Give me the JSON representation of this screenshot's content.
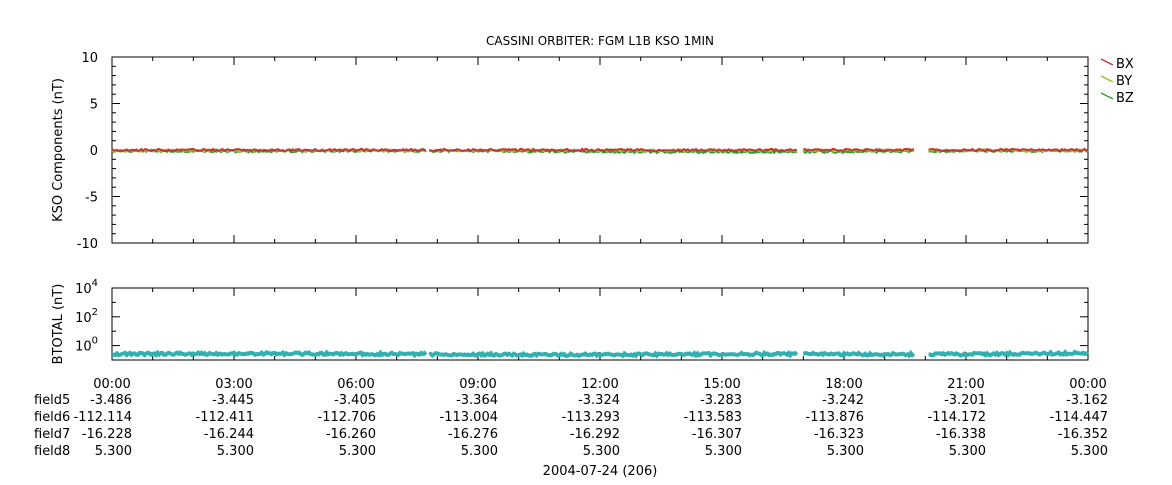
{
  "title": "CASSINI ORBITER: FGM L1B KSO 1MIN",
  "date_label": "2004-07-24 (206)",
  "chart_data": [
    {
      "type": "line",
      "ylabel": "KSO Components (nT)",
      "ylim": [
        -10,
        10
      ],
      "yticks": [
        "10",
        "5",
        "0",
        "-5",
        "-10"
      ],
      "ytick_values": [
        10,
        5,
        0,
        -5,
        -10
      ],
      "xlim_hours": [
        0,
        24
      ],
      "legend_placement": "right",
      "gaps_hours": [
        [
          7.75,
          7.8
        ],
        [
          16.85,
          17.0
        ],
        [
          19.75,
          20.05
        ]
      ],
      "series": [
        {
          "name": "BX",
          "color": "#cc3333",
          "x_hours": [
            0,
            3,
            6,
            9,
            12,
            15,
            18,
            21,
            24
          ],
          "values": [
            0.0,
            0.0,
            0.0,
            0.0,
            0.0,
            0.0,
            0.0,
            0.0,
            0.0
          ]
        },
        {
          "name": "BY",
          "color": "#a0c020",
          "x_hours": [
            0,
            3,
            6,
            9,
            12,
            15,
            18,
            21,
            24
          ],
          "values": [
            -0.05,
            -0.05,
            -0.05,
            -0.05,
            -0.05,
            -0.05,
            -0.05,
            -0.05,
            -0.05
          ]
        },
        {
          "name": "BZ",
          "color": "#30a030",
          "x_hours": [
            0,
            3,
            6,
            9,
            12,
            15,
            18,
            21,
            24
          ],
          "values": [
            -0.1,
            -0.15,
            -0.1,
            -0.1,
            -0.2,
            -0.2,
            -0.2,
            -0.1,
            -0.1
          ]
        }
      ]
    },
    {
      "type": "line",
      "ylabel": "BTOTAL (nT)",
      "yscale": "log",
      "ylim": [
        0.1,
        10000
      ],
      "yticks": [
        {
          "base": "10",
          "exp": "4",
          "value": 10000
        },
        {
          "base": "10",
          "exp": "2",
          "value": 100
        },
        {
          "base": "10",
          "exp": "0",
          "value": 1
        }
      ],
      "xlim_hours": [
        0,
        24
      ],
      "gaps_hours": [
        [
          7.75,
          7.8
        ],
        [
          16.85,
          17.0
        ],
        [
          19.75,
          20.05
        ]
      ],
      "series": [
        {
          "color": "#30b0b0",
          "x_hours": [
            0,
            3,
            6,
            9,
            12,
            15,
            18,
            21,
            24
          ],
          "values": [
            0.26,
            0.28,
            0.27,
            0.24,
            0.23,
            0.26,
            0.25,
            0.25,
            0.3
          ]
        }
      ]
    }
  ],
  "x_axis": {
    "tick_hours": [
      0,
      3,
      6,
      9,
      12,
      15,
      18,
      21,
      24
    ],
    "tick_labels": [
      "00:00",
      "03:00",
      "06:00",
      "09:00",
      "12:00",
      "15:00",
      "18:00",
      "21:00",
      "00:00"
    ]
  },
  "ephemeris_rows": [
    {
      "label": "field5",
      "values": [
        "-3.486",
        "-3.445",
        "-3.405",
        "-3.364",
        "-3.324",
        "-3.283",
        "-3.242",
        "-3.201",
        "-3.162"
      ]
    },
    {
      "label": "field6",
      "values": [
        "-112.114",
        "-112.411",
        "-112.706",
        "-113.004",
        "-113.293",
        "-113.583",
        "-113.876",
        "-114.172",
        "-114.447"
      ]
    },
    {
      "label": "field7",
      "values": [
        "-16.228",
        "-16.244",
        "-16.260",
        "-16.276",
        "-16.292",
        "-16.307",
        "-16.323",
        "-16.338",
        "-16.352"
      ]
    },
    {
      "label": "field8",
      "values": [
        "5.300",
        "5.300",
        "5.300",
        "5.300",
        "5.300",
        "5.300",
        "5.300",
        "5.300",
        "5.300"
      ]
    }
  ]
}
